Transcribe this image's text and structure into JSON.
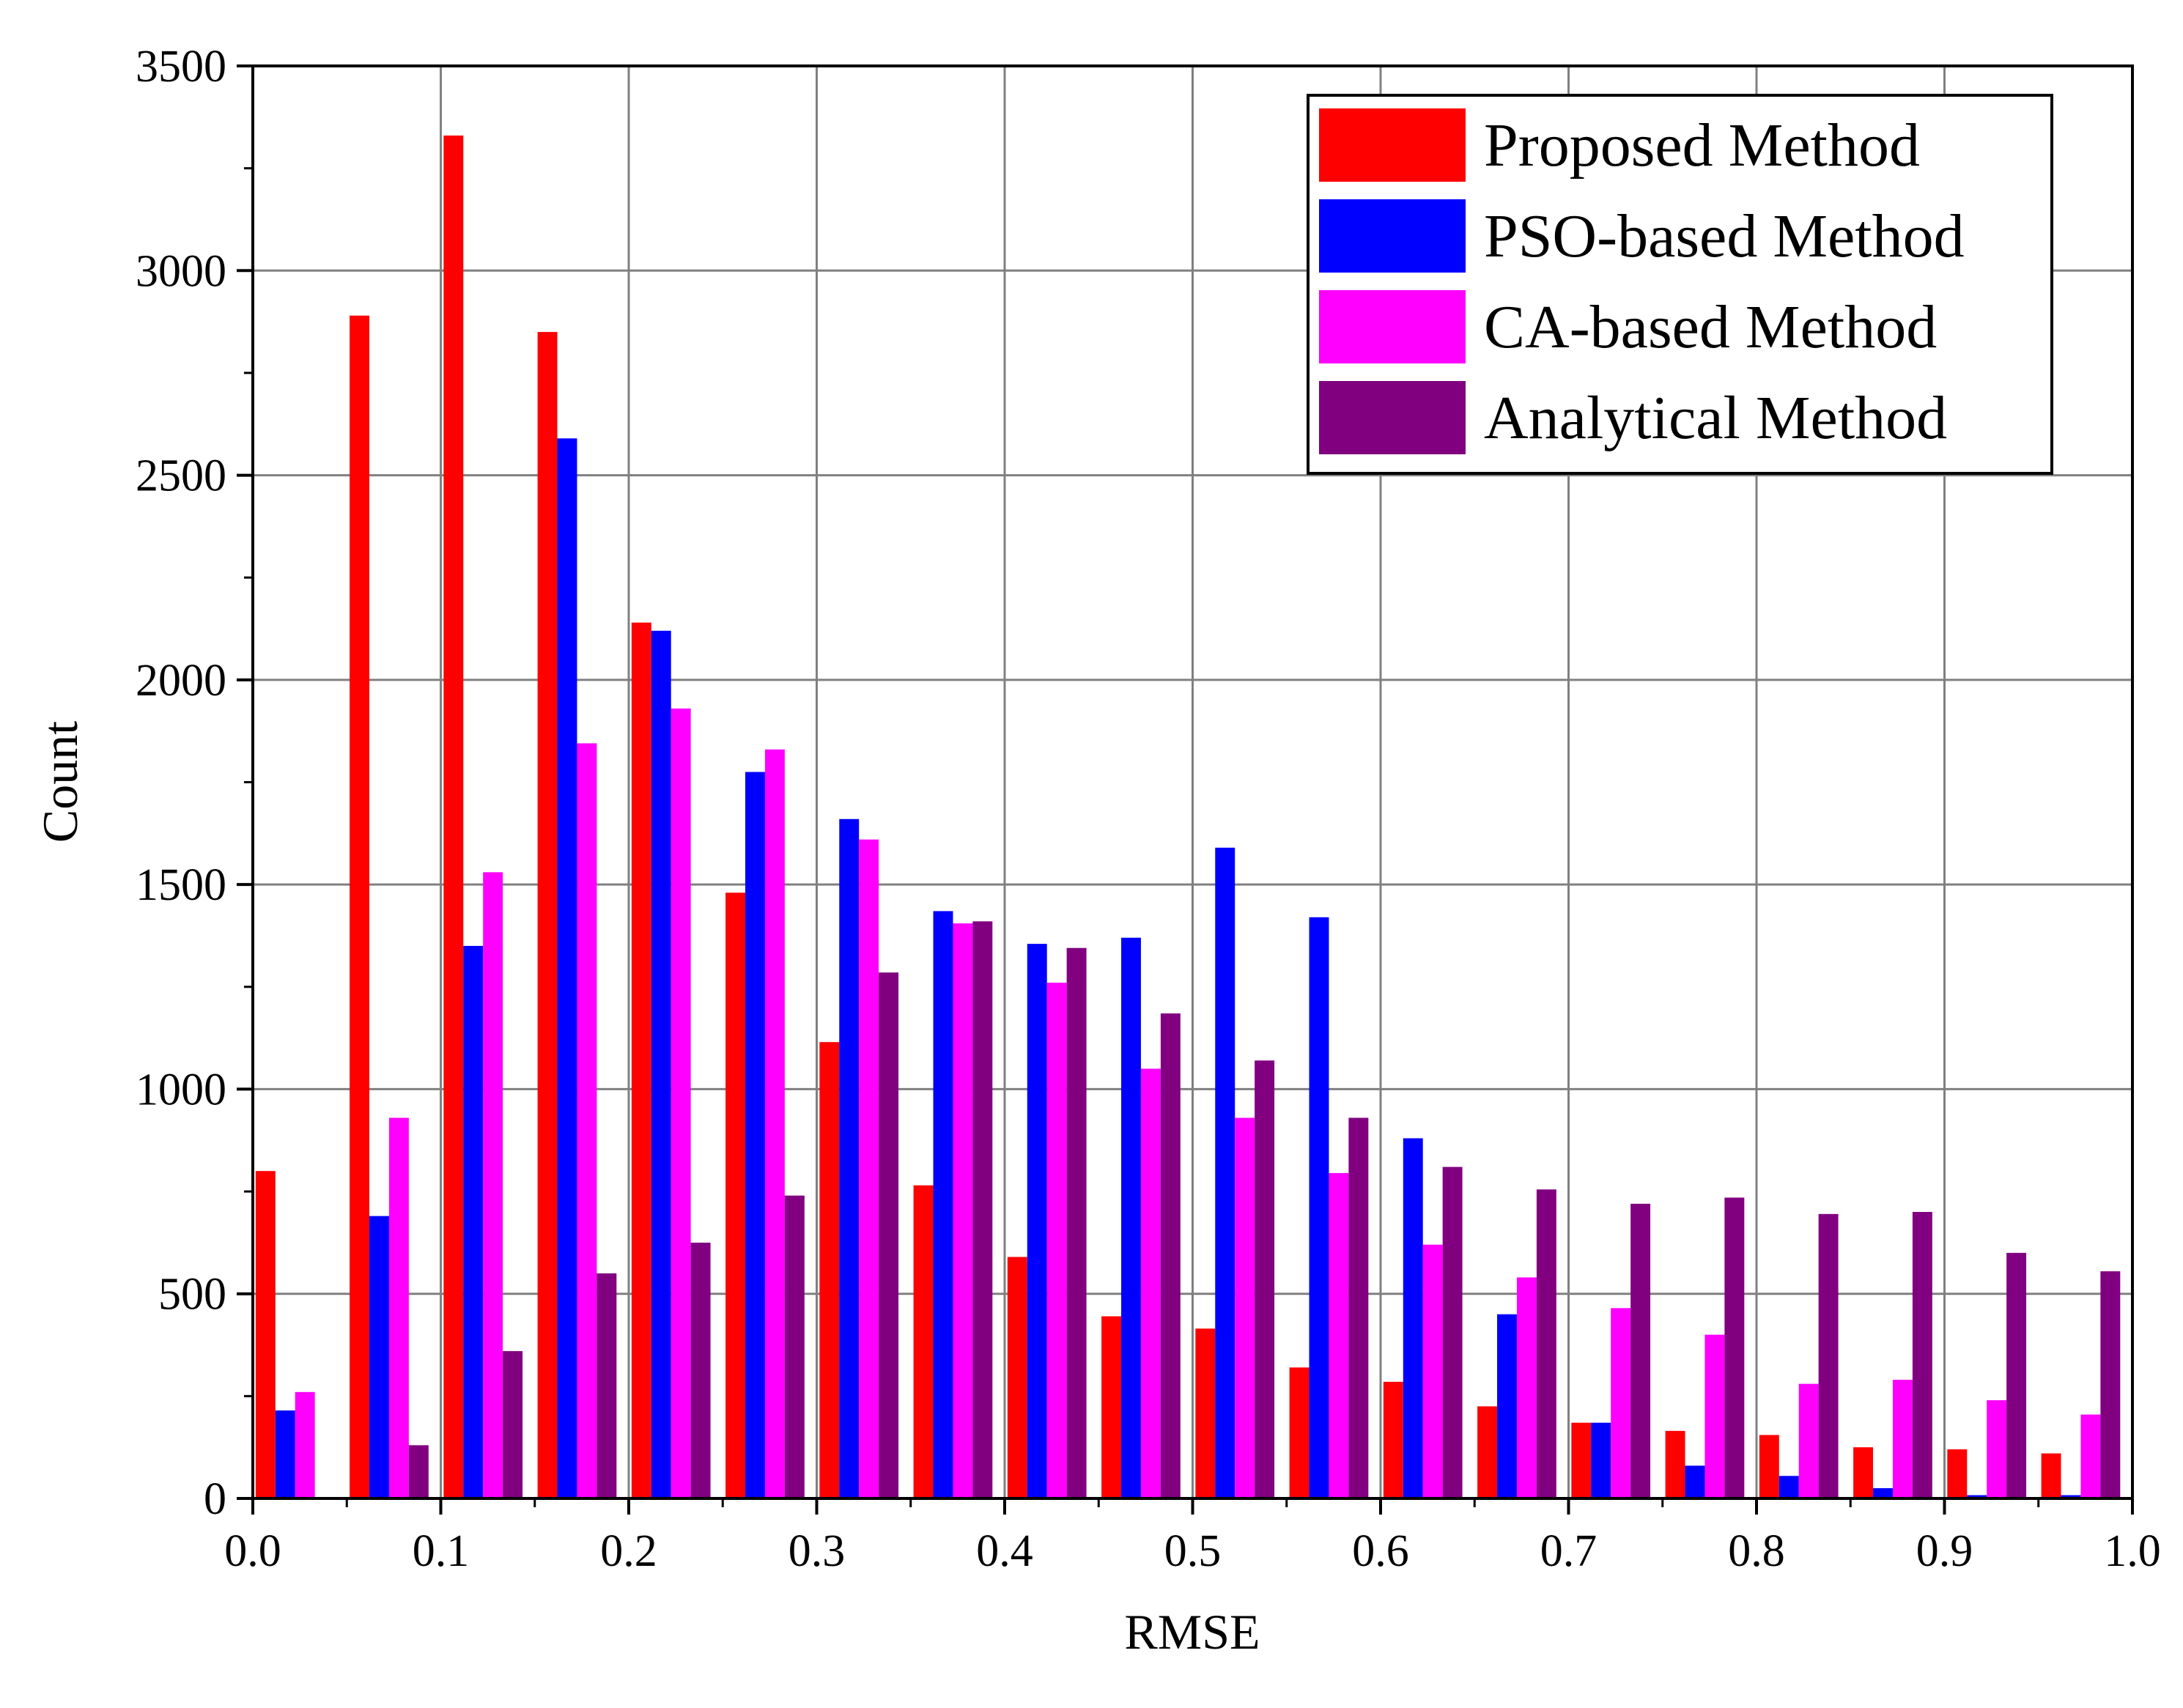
{
  "chart_data": {
    "type": "bar",
    "title": "",
    "xlabel": "RMSE",
    "ylabel": "Count",
    "xlim": [
      0.0,
      1.0
    ],
    "ylim": [
      0,
      3500
    ],
    "x_ticks": [
      "0.0",
      "0.1",
      "0.2",
      "0.3",
      "0.4",
      "0.5",
      "0.6",
      "0.7",
      "0.8",
      "0.9",
      "1.0"
    ],
    "y_ticks": [
      "0",
      "500",
      "1000",
      "1500",
      "2000",
      "2500",
      "3000",
      "3500"
    ],
    "grid": true,
    "legend_position": "top-right",
    "bin_width": 0.05,
    "bin_starts": [
      0.0,
      0.05,
      0.1,
      0.15,
      0.2,
      0.25,
      0.3,
      0.35,
      0.4,
      0.45,
      0.5,
      0.55,
      0.6,
      0.65,
      0.7,
      0.75,
      0.8,
      0.85,
      0.9,
      0.95
    ],
    "series": [
      {
        "name": "Proposed Method",
        "color": "#ff0000",
        "values": [
          800,
          2890,
          3330,
          2850,
          2140,
          1480,
          1115,
          765,
          590,
          445,
          415,
          320,
          285,
          225,
          185,
          165,
          155,
          125,
          120,
          110
        ]
      },
      {
        "name": "PSO-based Method",
        "color": "#0000ff",
        "values": [
          215,
          690,
          1350,
          2590,
          2120,
          1775,
          1660,
          1435,
          1355,
          1370,
          1590,
          1420,
          880,
          450,
          185,
          80,
          55,
          25,
          8,
          8
        ]
      },
      {
        "name": "CA-based Method",
        "color": "#ff00ff",
        "values": [
          260,
          930,
          1530,
          1845,
          1930,
          1830,
          1610,
          1405,
          1260,
          1050,
          930,
          795,
          620,
          540,
          465,
          400,
          280,
          290,
          240,
          205
        ]
      },
      {
        "name": "Analytical Method",
        "color": "#800080",
        "values": [
          0,
          130,
          360,
          550,
          625,
          740,
          1285,
          1410,
          1345,
          1185,
          1070,
          930,
          810,
          755,
          720,
          735,
          695,
          700,
          600,
          555
        ]
      }
    ]
  }
}
